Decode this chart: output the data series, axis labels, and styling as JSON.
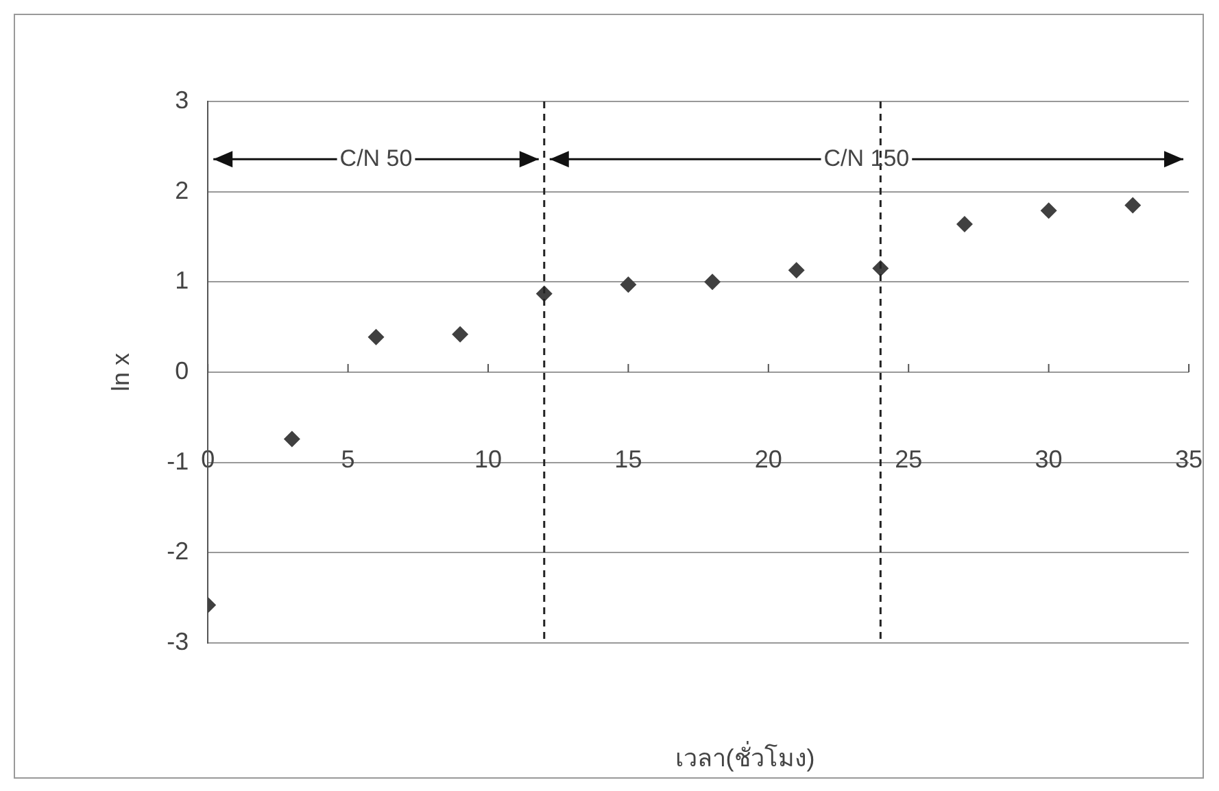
{
  "chart_data": {
    "type": "scatter",
    "xlabel": "เวลา(ชั่วโมง)",
    "ylabel": "ln x",
    "x": [
      0,
      3,
      6,
      9,
      12,
      15,
      18,
      21,
      24,
      27,
      30,
      33
    ],
    "series": [
      {
        "color": "#404040",
        "values": [
          -2.58,
          -0.74,
          0.39,
          0.42,
          0.87,
          0.97,
          1.0,
          1.13,
          1.15,
          1.64,
          1.79,
          1.85
        ]
      }
    ],
    "xlim": [
      0,
      35
    ],
    "xticks": [
      0,
      5,
      10,
      15,
      20,
      25,
      30,
      35
    ],
    "ylim": [
      -3,
      3
    ],
    "yticks": [
      -3,
      -2,
      -1,
      0,
      1,
      2,
      3
    ],
    "grid": "y",
    "legend": false,
    "marker": "diamond",
    "ref_lines": [
      {
        "axis": "x",
        "value": 12,
        "line_style": "dashed",
        "color": "#222222"
      },
      {
        "axis": "x",
        "value": 24,
        "line_style": "dashed",
        "color": "#222222"
      }
    ],
    "annotations": [
      {
        "text": "C/N 50",
        "x": 12,
        "y": 2.36
      },
      {
        "text": "C/N 150",
        "x": 12,
        "y": 2.36
      }
    ]
  }
}
